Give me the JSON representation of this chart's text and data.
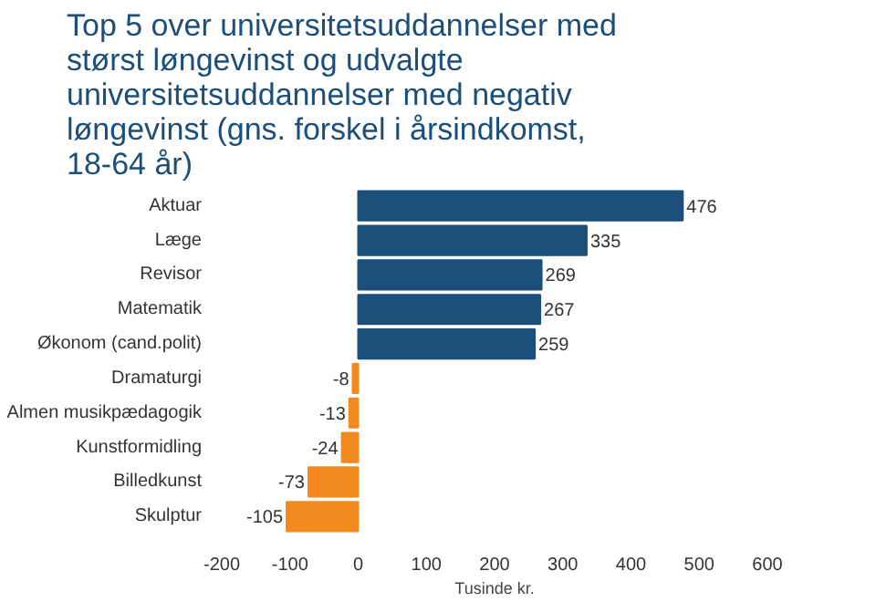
{
  "chart_data": {
    "type": "bar",
    "orientation": "horizontal",
    "title": "Top 5 over universitetsuddannelser med størst løngevinst og udvalgte universitetsuddannelser med negativ løngevinst (gns. forskel i årsindkomst, 18-64 år)",
    "categories": [
      "Aktuar",
      "Læge",
      "Revisor",
      "Matematik",
      "Økonom (cand.polit)",
      "Dramaturgi",
      "Almen musikpædagogik",
      "Kunstformidling",
      "Billedkunst",
      "Skulptur"
    ],
    "values": [
      476,
      335,
      269,
      267,
      259,
      -8,
      -13,
      -24,
      -73,
      -105
    ],
    "colors": [
      "#1b4e79",
      "#1b4e79",
      "#1b4e79",
      "#1b4e79",
      "#1b4e79",
      "#f28a1f",
      "#f28a1f",
      "#f28a1f",
      "#f28a1f",
      "#f28a1f"
    ],
    "xlabel": "Tusinde kr.",
    "xlim": [
      -200,
      600
    ],
    "xticks": [
      -200,
      -100,
      0,
      100,
      200,
      300,
      400,
      500,
      600
    ],
    "data_labels": true,
    "grid": false
  }
}
